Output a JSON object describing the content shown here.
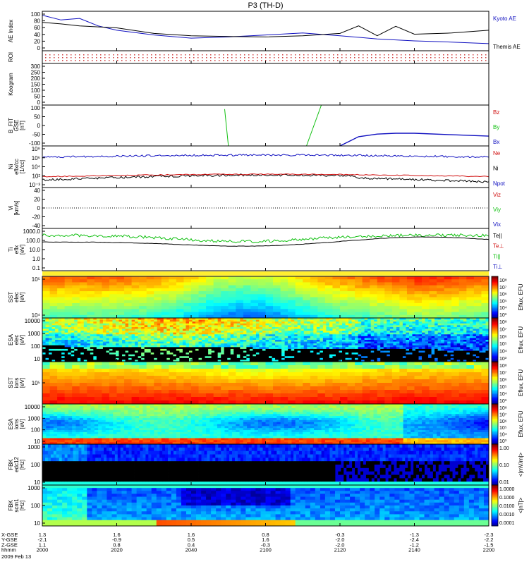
{
  "title": "P3 (TH-D)",
  "colors": {
    "kyoto": "#1010c0",
    "themis": "#000000",
    "red": "#d01010",
    "green": "#10c010",
    "blue": "#1010c0"
  },
  "panels": [
    {
      "id": "ae",
      "ylabel": [
        "AE Index"
      ],
      "yticks": [
        "100",
        "80",
        "60",
        "40",
        "20",
        "0"
      ],
      "legend": [
        {
          "text": "Kyoto AE",
          "color": "#1010c0"
        },
        {
          "text": "Themis AE",
          "color": "#000000"
        }
      ]
    },
    {
      "id": "roi",
      "ylabel": [
        "ROI"
      ],
      "yticks": [],
      "legend": []
    },
    {
      "id": "keogram",
      "ylabel": [
        "Keogram"
      ],
      "yticks": [
        "300",
        "250",
        "200",
        "150",
        "100",
        "50",
        "0"
      ],
      "legend": []
    },
    {
      "id": "bfit",
      "ylabel": [
        "B_FIT",
        "GSE",
        "[nT]"
      ],
      "yticks": [
        "100",
        "50",
        "0",
        "-50",
        "-100"
      ],
      "legend": [
        {
          "text": "Bz",
          "color": "#d01010"
        },
        {
          "text": "By",
          "color": "#10c010"
        },
        {
          "text": "Bx",
          "color": "#1010c0"
        }
      ]
    },
    {
      "id": "ni",
      "ylabel": [
        "Ni",
        "eflx/cc",
        "[1/cc]"
      ],
      "yticks": [
        "10⁸",
        "10⁶",
        "10⁴",
        "10²",
        "10⁻³"
      ],
      "legend": [
        {
          "text": "Ne",
          "color": "#d01010"
        },
        {
          "text": "Ni",
          "color": "#000000"
        },
        {
          "text": "Npot",
          "color": "#1010c0"
        }
      ]
    },
    {
      "id": "vi",
      "ylabel": [
        "Vi",
        "[km/s]"
      ],
      "yticks": [
        "40",
        "20",
        "0",
        "-20",
        "-40"
      ],
      "legend": [
        {
          "text": "Viz",
          "color": "#d01010"
        },
        {
          "text": "Viy",
          "color": "#10c010"
        },
        {
          "text": "Vix",
          "color": "#1010c0"
        }
      ]
    },
    {
      "id": "ti",
      "ylabel": [
        "Ti",
        "eflx",
        "[eV]"
      ],
      "yticks": [
        "1000.0",
        "100.0",
        "10.0",
        "1.0",
        "0.1"
      ],
      "legend": [
        {
          "text": "Te||",
          "color": "#000000"
        },
        {
          "text": "Te⊥",
          "color": "#d01010"
        },
        {
          "text": "Ti||",
          "color": "#10c010"
        },
        {
          "text": "Ti⊥",
          "color": "#1010c0"
        }
      ]
    },
    {
      "id": "sst_e",
      "ylabel": [
        "SST",
        "elec",
        "[eV]"
      ],
      "yticks": [
        "10⁵",
        "10⁴"
      ],
      "legend": []
    },
    {
      "id": "esa_e",
      "ylabel": [
        "ESA",
        "elec",
        "[eV]"
      ],
      "yticks": [
        "10000",
        "1000",
        "100",
        "10"
      ],
      "legend": []
    },
    {
      "id": "sst_i",
      "ylabel": [
        "SST",
        "ions",
        "[eV]"
      ],
      "yticks": [
        "10⁵"
      ],
      "legend": []
    },
    {
      "id": "esa_i",
      "ylabel": [
        "ESA",
        "ions",
        "[eV]"
      ],
      "yticks": [
        "10000",
        "1000",
        "100",
        "10"
      ],
      "legend": []
    },
    {
      "id": "fbk1",
      "ylabel": [
        "FBK",
        "edc12",
        "[Hz]"
      ],
      "yticks": [
        "1000",
        "100",
        "10"
      ],
      "legend": []
    },
    {
      "id": "fbk2",
      "ylabel": [
        "FBK",
        "scm1",
        "[Hz]"
      ],
      "yticks": [
        "1000",
        "100",
        "10"
      ],
      "legend": []
    }
  ],
  "colorbars": [
    {
      "id": "cb_sst_e",
      "labels": [
        "10⁸",
        "10⁷",
        "10⁶",
        "10⁵",
        "10⁴",
        "10³"
      ],
      "unit": "Eflux, EFU"
    },
    {
      "id": "cb_esa_e",
      "labels": [
        "10⁸",
        "10⁷",
        "10⁶",
        "10⁵",
        "10⁴",
        "10³"
      ],
      "unit": "Eflux, EFU"
    },
    {
      "id": "cb_sst_i",
      "labels": [
        "10⁸",
        "10⁷",
        "10⁶",
        "10⁵",
        "10⁴",
        "10³"
      ],
      "unit": "Eflux, EFU"
    },
    {
      "id": "cb_esa_i",
      "labels": [
        "10⁸",
        "10⁷",
        "10⁶",
        "10⁵",
        "10⁴",
        "10³"
      ],
      "unit": "Eflux, EFU"
    },
    {
      "id": "cb_fbk1",
      "labels": [
        "1.00",
        "0.10",
        "0.01"
      ],
      "unit": "<|mV/m|>"
    },
    {
      "id": "cb_fbk2",
      "labels": [
        "1.0000",
        "0.1000",
        "0.0100",
        "0.0010",
        "0.0001"
      ],
      "unit": "<|nT|>"
    }
  ],
  "x_axis": {
    "row_labels": [
      "X-GSE",
      "Y-GSE",
      "Z-GSE",
      "hhmm"
    ],
    "columns": [
      [
        "1.3",
        "-2.1",
        "1.1",
        "2000"
      ],
      [
        "1.6",
        "-0.9",
        "0.8",
        "2020"
      ],
      [
        "1.6",
        "0.5",
        "0.4",
        "2040"
      ],
      [
        "0.8",
        "1.6",
        "-0.3",
        "2100"
      ],
      [
        "-0.3",
        "-2.0",
        "-2.0",
        "2120"
      ],
      [
        "-1.3",
        "-2.4",
        "-1.2",
        "2140"
      ],
      [
        "-2.3",
        "-2.2",
        "-1.5",
        "2200"
      ]
    ],
    "date": "2009 Feb 13"
  },
  "chart_data": {
    "type": "line",
    "title": "P3 (TH-D)",
    "x_unit": "hhmm UT",
    "xlim": [
      "2000",
      "2200"
    ],
    "series": [
      {
        "name": "Kyoto AE",
        "panel": "ae",
        "t": [
          0,
          5,
          10,
          15,
          20,
          30,
          40,
          50,
          60,
          70,
          80,
          90,
          100,
          110,
          120
        ],
        "values": [
          90,
          78,
          82,
          63,
          52,
          40,
          32,
          35,
          40,
          45,
          38,
          30,
          25,
          22,
          18
        ]
      },
      {
        "name": "Themis AE",
        "panel": "ae",
        "t": [
          0,
          5,
          10,
          20,
          30,
          40,
          50,
          60,
          70,
          80,
          85,
          90,
          95,
          100,
          110,
          120
        ],
        "values": [
          72,
          68,
          63,
          58,
          44,
          38,
          36,
          35,
          38,
          44,
          63,
          38,
          62,
          42,
          45,
          52
        ]
      },
      {
        "name": "Bx",
        "panel": "bfit",
        "t": [
          80,
          85,
          90,
          95,
          100,
          110,
          120
        ],
        "values": [
          -100,
          -55,
          -42,
          -38,
          -38,
          -45,
          -52
        ]
      },
      {
        "name": "By",
        "panel": "bfit",
        "t": [
          49,
          50,
          71,
          75
        ],
        "values": [
          80,
          -100,
          -100,
          100
        ]
      },
      {
        "name": "Te||",
        "panel": "ti",
        "t": [
          0,
          20,
          40,
          60,
          80,
          100,
          120
        ],
        "values": [
          90,
          110,
          70,
          40,
          60,
          130,
          180
        ]
      },
      {
        "name": "Ti||",
        "panel": "ti",
        "t": [
          0,
          20,
          40,
          60,
          80,
          100,
          120
        ],
        "values": [
          700,
          900,
          600,
          250,
          120,
          200,
          400
        ]
      }
    ],
    "ylim_ae": [
      0,
      100
    ],
    "ylim_bfit": [
      -100,
      100
    ]
  }
}
